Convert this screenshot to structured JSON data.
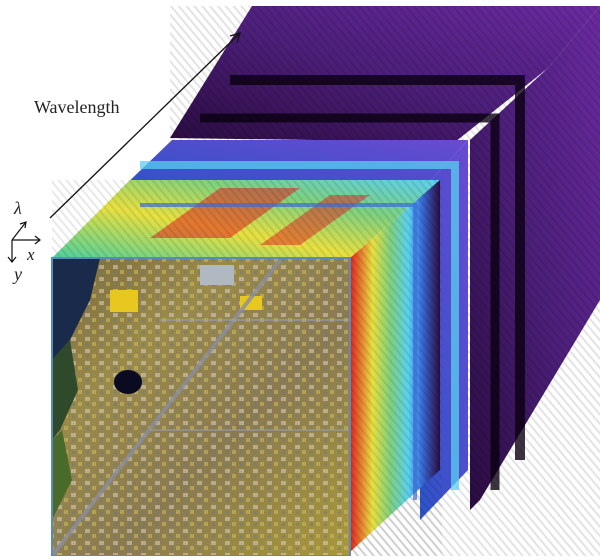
{
  "figure": {
    "wavelength_label": "Wavelength",
    "axis_lambda": "λ",
    "axis_x": "x",
    "axis_y": "y"
  },
  "colors": {
    "deep_purple": "#3a0f55",
    "purple": "#5a2a90",
    "blue": "#3a6ad8",
    "cyan": "#5ad0f0",
    "green": "#7ed080",
    "yellow": "#e8e040",
    "red": "#e02020"
  }
}
